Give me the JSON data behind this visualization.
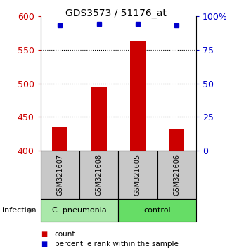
{
  "title": "GDS3573 / 51176_at",
  "samples": [
    "GSM321607",
    "GSM321608",
    "GSM321605",
    "GSM321606"
  ],
  "counts": [
    435,
    495,
    562,
    432
  ],
  "percentile_ranks": [
    93,
    94,
    94,
    93
  ],
  "ylim_left": [
    400,
    600
  ],
  "ylim_right": [
    0,
    100
  ],
  "yticks_left": [
    400,
    450,
    500,
    550,
    600
  ],
  "yticks_right": [
    0,
    25,
    50,
    75,
    100
  ],
  "yticklabels_right": [
    "0",
    "25",
    "50",
    "75",
    "100%"
  ],
  "groups": [
    {
      "label": "C. pneumonia",
      "color": "#aae8aa",
      "samples_count": 2
    },
    {
      "label": "control",
      "color": "#66dd66",
      "samples_count": 2
    }
  ],
  "group_label": "infection",
  "bar_color": "#cc0000",
  "dot_color": "#0000cc",
  "bar_width": 0.4,
  "background_plot": "#ffffff",
  "background_label": "#c8c8c8",
  "ylabel_left_color": "#cc0000",
  "ylabel_right_color": "#0000cc",
  "legend_count_label": "count",
  "legend_pct_label": "percentile rank within the sample",
  "x_positions": [
    1,
    2,
    3,
    4
  ],
  "gridline_values": [
    450,
    500,
    550
  ]
}
